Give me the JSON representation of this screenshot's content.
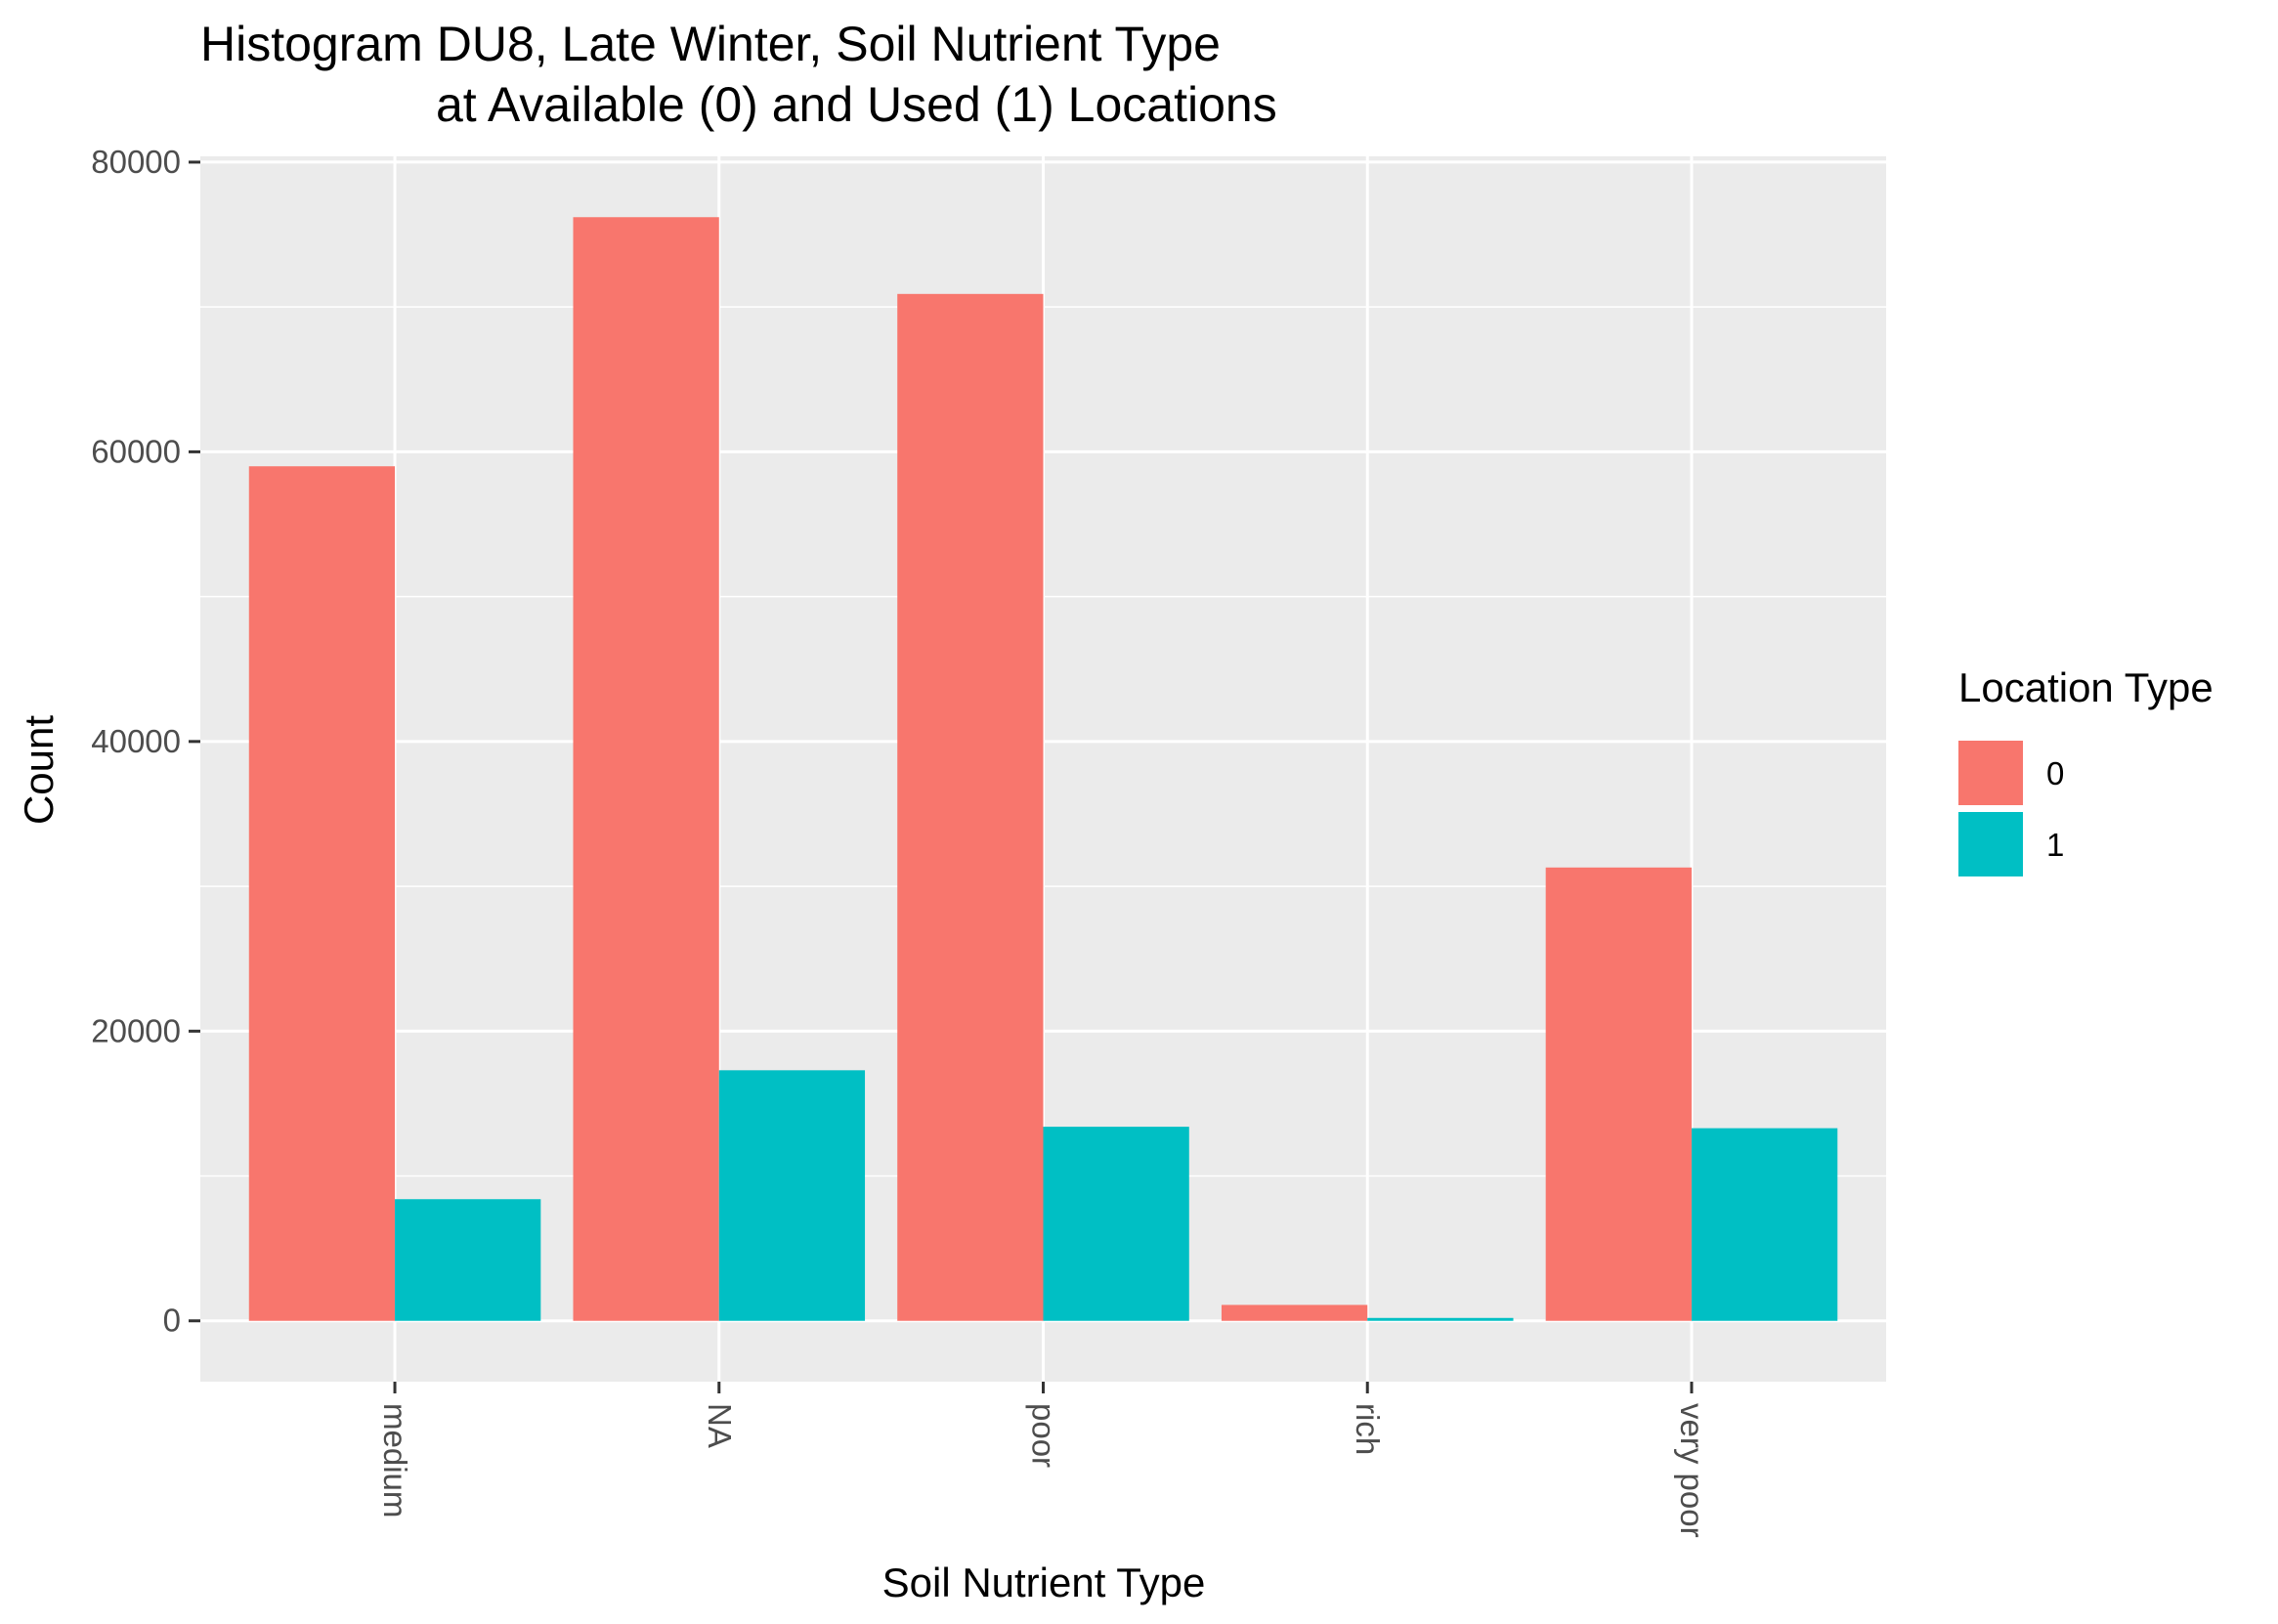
{
  "chart_data": {
    "type": "bar",
    "title_lines": [
      "Histogram DU8, Late Winter, Soil Nutrient Type",
      "at Available (0) and Used (1) Locations"
    ],
    "xlabel": "Soil Nutrient Type",
    "ylabel": "Count",
    "categories": [
      "medium",
      "NA",
      "poor",
      "rich",
      "very poor"
    ],
    "series": [
      {
        "name": "0",
        "color": "#F8766D",
        "values": [
          59000,
          76200,
          70900,
          1100,
          31300
        ]
      },
      {
        "name": "1",
        "color": "#00BFC4",
        "values": [
          8400,
          17300,
          13400,
          200,
          13300
        ]
      }
    ],
    "ylim": [
      -4200,
      80400
    ],
    "yticks": [
      0,
      20000,
      40000,
      60000,
      80000
    ],
    "ytick_labels": [
      "0",
      "20000",
      "40000",
      "60000",
      "80000"
    ],
    "grid": true,
    "panel_background": "#EBEBEB",
    "grid_color": "#FFFFFF",
    "legend": {
      "title": "Location Type",
      "position": "right"
    }
  }
}
